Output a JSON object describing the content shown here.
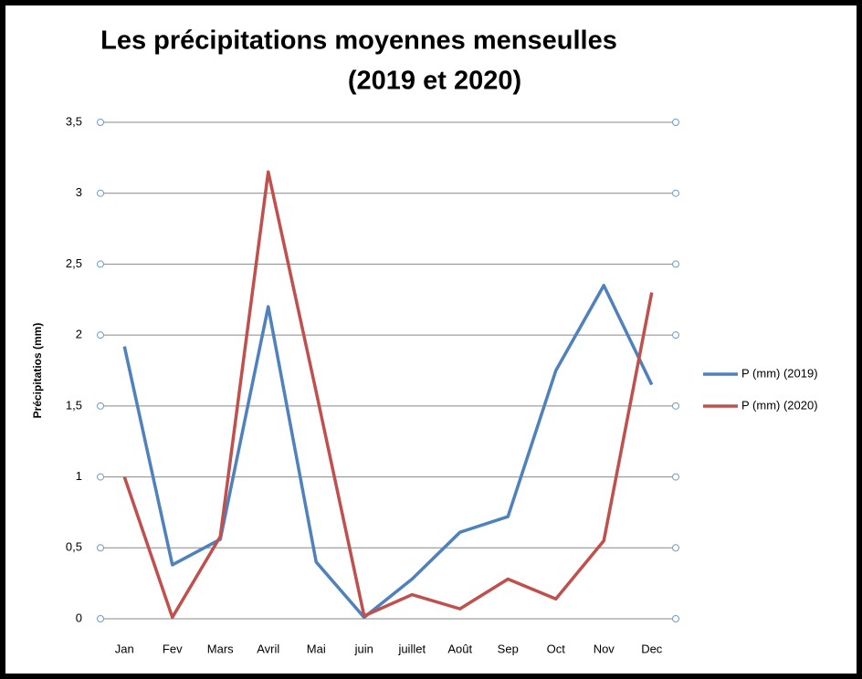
{
  "chart_data": {
    "type": "line",
    "title": [
      "Les précipitations moyennes menseulles",
      "(2019 et 2020)"
    ],
    "y_label": "Précipitatios (mm)",
    "categories": [
      "Jan",
      "Fev",
      "Mars",
      "Avril",
      "Mai",
      "juin",
      "juillet",
      "Août",
      "Sep",
      "Oct",
      "Nov",
      "Dec"
    ],
    "series": [
      {
        "name": "P (mm) (2019)",
        "color": "#4f81bd",
        "values": [
          1.92,
          0.38,
          0.56,
          2.2,
          0.4,
          0.01,
          0.28,
          0.61,
          0.72,
          1.75,
          2.35,
          1.65
        ]
      },
      {
        "name": "P (mm) (2020)",
        "color": "#c0504d",
        "values": [
          1.0,
          0.01,
          0.58,
          3.15,
          1.6,
          0.02,
          0.17,
          0.07,
          0.28,
          0.14,
          0.55,
          2.3
        ]
      }
    ],
    "ylim": [
      0,
      3.5
    ],
    "yticks": [
      0,
      {
        "value": 0.5,
        "label": "0,5"
      },
      1,
      {
        "value": 1.5,
        "label": "1,5"
      },
      2,
      {
        "value": 2.5,
        "label": "2,5"
      },
      3,
      {
        "value": 3.5,
        "label": "3,5"
      }
    ],
    "grid": true,
    "legend": "right"
  }
}
